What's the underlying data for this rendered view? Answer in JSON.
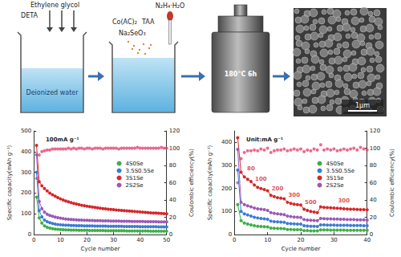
{
  "diagram": {
    "step1": {
      "inputs": [
        "Ethylene glycol",
        "DETA"
      ],
      "label": "Deionized water"
    },
    "step2": {
      "reagents": [
        "Co(AC)₂",
        "TAA",
        "Na₂SeO₃"
      ]
    },
    "step3": {
      "reagent": "N₂H₄·H₂O"
    },
    "step4": {
      "condition": "180°C 6h"
    },
    "sem": {
      "scale_bar": "1μm"
    }
  },
  "chart_data": [
    {
      "type": "line",
      "title": "100mA g⁻¹",
      "xlabel": "Cycle number",
      "ylabel": "Specific capacity(mAh g⁻¹)",
      "y2label": "Coulombic efficiency(%)",
      "x": [
        1,
        2,
        3,
        4,
        5,
        6,
        7,
        8,
        9,
        10,
        11,
        12,
        13,
        14,
        15,
        16,
        17,
        18,
        19,
        20,
        21,
        22,
        23,
        24,
        25,
        26,
        27,
        28,
        29,
        30,
        31,
        32,
        33,
        34,
        35,
        36,
        37,
        38,
        39,
        40,
        41,
        42,
        43,
        44,
        45,
        46,
        47,
        48,
        49,
        50
      ],
      "xlim": [
        0,
        50
      ],
      "xticks": [
        0,
        10,
        20,
        30,
        40,
        50
      ],
      "ylim": [
        0,
        500
      ],
      "yticks": [
        0,
        100,
        200,
        300,
        400,
        500
      ],
      "y2lim": [
        0,
        120
      ],
      "y2ticks": [
        0,
        20,
        40,
        60,
        80,
        100,
        120
      ],
      "grid": false,
      "legend": "upper right",
      "series": [
        {
          "name": "4S0Se",
          "color": "#3cb043",
          "marker": "circle",
          "line_style": "solid",
          "values": [
            180,
            80,
            55,
            42,
            35,
            31,
            28,
            26,
            25,
            24,
            23,
            22,
            22,
            21,
            21,
            21,
            20,
            20,
            20,
            20,
            19,
            19,
            19,
            19,
            19,
            19,
            18,
            18,
            18,
            18,
            18,
            18,
            18,
            18,
            17,
            17,
            17,
            17,
            17,
            17,
            17,
            17,
            17,
            16,
            16,
            16,
            16,
            16,
            16,
            16
          ]
        },
        {
          "name": "3.5S0.5Se",
          "color": "#3a7bd5",
          "marker": "circle",
          "line_style": "solid",
          "values": [
            300,
            115,
            85,
            70,
            62,
            57,
            53,
            50,
            48,
            47,
            46,
            45,
            45,
            44,
            44,
            43,
            43,
            43,
            42,
            42,
            42,
            42,
            41,
            41,
            41,
            41,
            41,
            40,
            40,
            40,
            40,
            40,
            40,
            39,
            39,
            39,
            39,
            39,
            39,
            38,
            38,
            38,
            38,
            38,
            38,
            38,
            37,
            37,
            37,
            37
          ]
        },
        {
          "name": "3S1Se",
          "color": "#d62728",
          "marker": "circle",
          "line_style": "solid",
          "values": [
            430,
            255,
            235,
            222,
            210,
            200,
            192,
            185,
            178,
            172,
            167,
            162,
            158,
            154,
            150,
            147,
            144,
            141,
            139,
            137,
            135,
            133,
            131,
            129,
            127,
            125,
            124,
            122,
            121,
            120,
            118,
            117,
            116,
            115,
            114,
            113,
            112,
            111,
            110,
            109,
            108,
            107,
            106,
            105,
            104,
            104,
            103,
            102,
            101,
            100
          ]
        },
        {
          "name": "2S2Se",
          "color": "#9b59b6",
          "marker": "circle",
          "line_style": "solid",
          "values": [
            385,
            160,
            125,
            108,
            98,
            92,
            88,
            84,
            81,
            79,
            77,
            75,
            74,
            73,
            72,
            71,
            70,
            70,
            69,
            69,
            68,
            68,
            67,
            67,
            67,
            66,
            66,
            66,
            65,
            65,
            65,
            65,
            64,
            64,
            64,
            64,
            63,
            63,
            63,
            63,
            63,
            62,
            62,
            62,
            62,
            62,
            61,
            61,
            61,
            61
          ]
        },
        {
          "type": "scatter",
          "axis": "y2",
          "color": "#e8436e",
          "marker": "circle",
          "values": [
            65,
            92,
            96,
            97,
            98,
            98,
            99,
            99,
            99,
            99,
            99,
            99,
            100,
            99,
            100,
            99,
            100,
            100,
            99,
            100,
            100,
            99,
            100,
            100,
            100,
            99,
            100,
            100,
            100,
            100,
            100,
            99,
            100,
            100,
            100,
            100,
            100,
            100,
            101,
            100,
            100,
            100,
            100,
            100,
            100,
            100,
            100,
            101,
            100,
            100
          ]
        }
      ]
    },
    {
      "type": "line",
      "title": "Unit:mA g⁻¹",
      "xlabel": "Cycle number",
      "ylabel": "Specific capacity(mAh g⁻¹)",
      "y2label": "Coulombic efficiency(%)",
      "x": [
        1,
        2,
        3,
        4,
        5,
        6,
        7,
        8,
        9,
        10,
        11,
        12,
        13,
        14,
        15,
        16,
        17,
        18,
        19,
        20,
        21,
        22,
        23,
        24,
        25,
        26,
        27,
        28,
        29,
        30,
        31,
        32,
        33,
        34,
        35,
        36,
        37,
        38,
        39,
        40
      ],
      "xlim": [
        0,
        40
      ],
      "xticks": [
        0,
        10,
        20,
        30,
        40
      ],
      "ylim": [
        0,
        450
      ],
      "yticks": [
        0,
        100,
        200,
        300,
        400
      ],
      "y2lim": [
        0,
        120
      ],
      "y2ticks": [
        0,
        20,
        40,
        60,
        80,
        100,
        120
      ],
      "grid": false,
      "legend": "upper right",
      "annotations": [
        {
          "text": "80",
          "x": 5,
          "y": 285,
          "color": "#d62728"
        },
        {
          "text": "100",
          "x": 8,
          "y": 240,
          "color": "#d62728"
        },
        {
          "text": "200",
          "x": 13,
          "y": 200,
          "color": "#d62728"
        },
        {
          "text": "300",
          "x": 18,
          "y": 170,
          "color": "#d62728"
        },
        {
          "text": "500",
          "x": 23,
          "y": 140,
          "color": "#d62728"
        },
        {
          "text": "300",
          "x": 33,
          "y": 145,
          "color": "#d62728"
        }
      ],
      "series": [
        {
          "name": "4S0Se",
          "color": "#3cb043",
          "marker": "circle",
          "line_style": "solid",
          "values": [
            130,
            60,
            50,
            45,
            42,
            38,
            36,
            35,
            34,
            33,
            28,
            27,
            26,
            26,
            25,
            22,
            22,
            21,
            21,
            21,
            17,
            17,
            16,
            16,
            16,
            20,
            20,
            20,
            19,
            19,
            19,
            19,
            19,
            18,
            18,
            18,
            18,
            18,
            18,
            18
          ]
        },
        {
          "name": "3.5S0.5Se",
          "color": "#3a7bd5",
          "marker": "circle",
          "line_style": "solid",
          "values": [
            280,
            100,
            90,
            85,
            80,
            75,
            72,
            70,
            68,
            66,
            58,
            56,
            55,
            54,
            53,
            48,
            47,
            46,
            45,
            45,
            38,
            37,
            36,
            36,
            35,
            42,
            42,
            41,
            41,
            41,
            40,
            40,
            40,
            40,
            39,
            39,
            39,
            39,
            38,
            38
          ]
        },
        {
          "name": "3S1Se",
          "color": "#d62728",
          "marker": "circle",
          "line_style": "solid",
          "values": [
            420,
            270,
            250,
            240,
            230,
            215,
            205,
            200,
            195,
            190,
            170,
            165,
            160,
            158,
            155,
            140,
            135,
            132,
            130,
            128,
            110,
            105,
            100,
            98,
            95,
            120,
            118,
            117,
            116,
            115,
            114,
            113,
            112,
            111,
            110,
            110,
            109,
            108,
            108,
            107
          ]
        },
        {
          "name": "2S2Se",
          "color": "#9b59b6",
          "marker": "circle",
          "line_style": "solid",
          "values": [
            370,
            140,
            130,
            125,
            120,
            115,
            112,
            110,
            108,
            105,
            95,
            92,
            90,
            88,
            86,
            80,
            78,
            76,
            75,
            74,
            65,
            63,
            62,
            61,
            60,
            70,
            69,
            68,
            68,
            67,
            67,
            66,
            66,
            65,
            65,
            65,
            64,
            64,
            64,
            63
          ]
        },
        {
          "type": "scatter",
          "axis": "y2",
          "color": "#e8436e",
          "marker": "circle",
          "values": [
            60,
            88,
            95,
            97,
            97,
            98,
            97,
            99,
            98,
            100,
            95,
            97,
            98,
            98,
            99,
            97,
            98,
            99,
            98,
            99,
            96,
            98,
            97,
            99,
            98,
            104,
            98,
            99,
            98,
            99,
            97,
            98,
            99,
            98,
            99,
            100,
            98,
            101,
            99,
            98
          ]
        }
      ]
    }
  ]
}
